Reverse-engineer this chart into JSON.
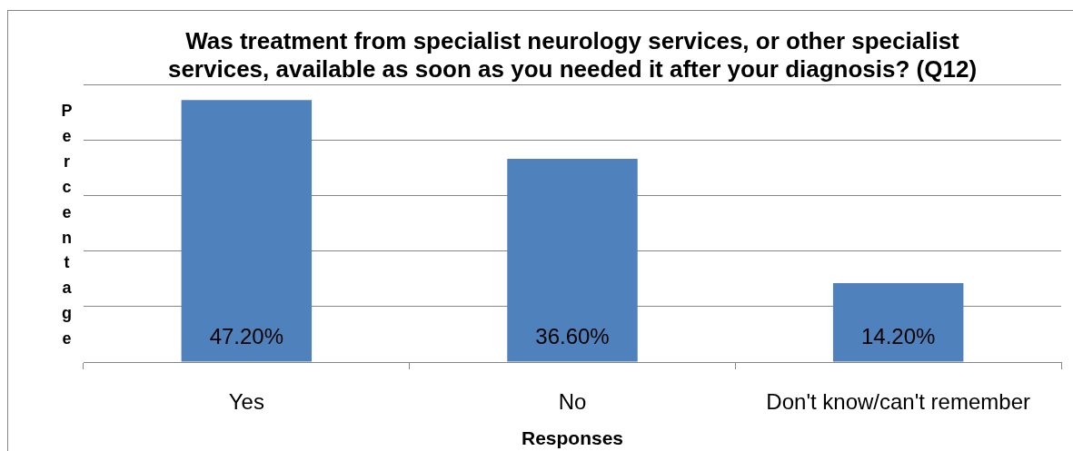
{
  "chart_data": {
    "type": "bar",
    "title": "Was treatment from specialist neurology services, or other specialist services, available as soon as you needed it after your diagnosis? (Q12)",
    "xlabel": "Responses",
    "ylabel": "Percentage",
    "categories": [
      "Yes",
      "No",
      "Don't know/can't remember"
    ],
    "values": [
      47.2,
      36.6,
      14.2
    ],
    "color": "#4f81bd",
    "value_labels": [
      "47.20%",
      "36.60%",
      "14.20%"
    ],
    "ylim": [
      0,
      50
    ],
    "yticks": [
      {
        "value": 0,
        "label": null
      },
      {
        "value": 10,
        "label": null
      },
      {
        "value": 20,
        "label": null
      },
      {
        "value": 30,
        "label": null
      },
      {
        "value": 40,
        "label": null
      },
      {
        "value": 50,
        "label": null
      }
    ],
    "grid": "y",
    "tick_labels": "x"
  }
}
